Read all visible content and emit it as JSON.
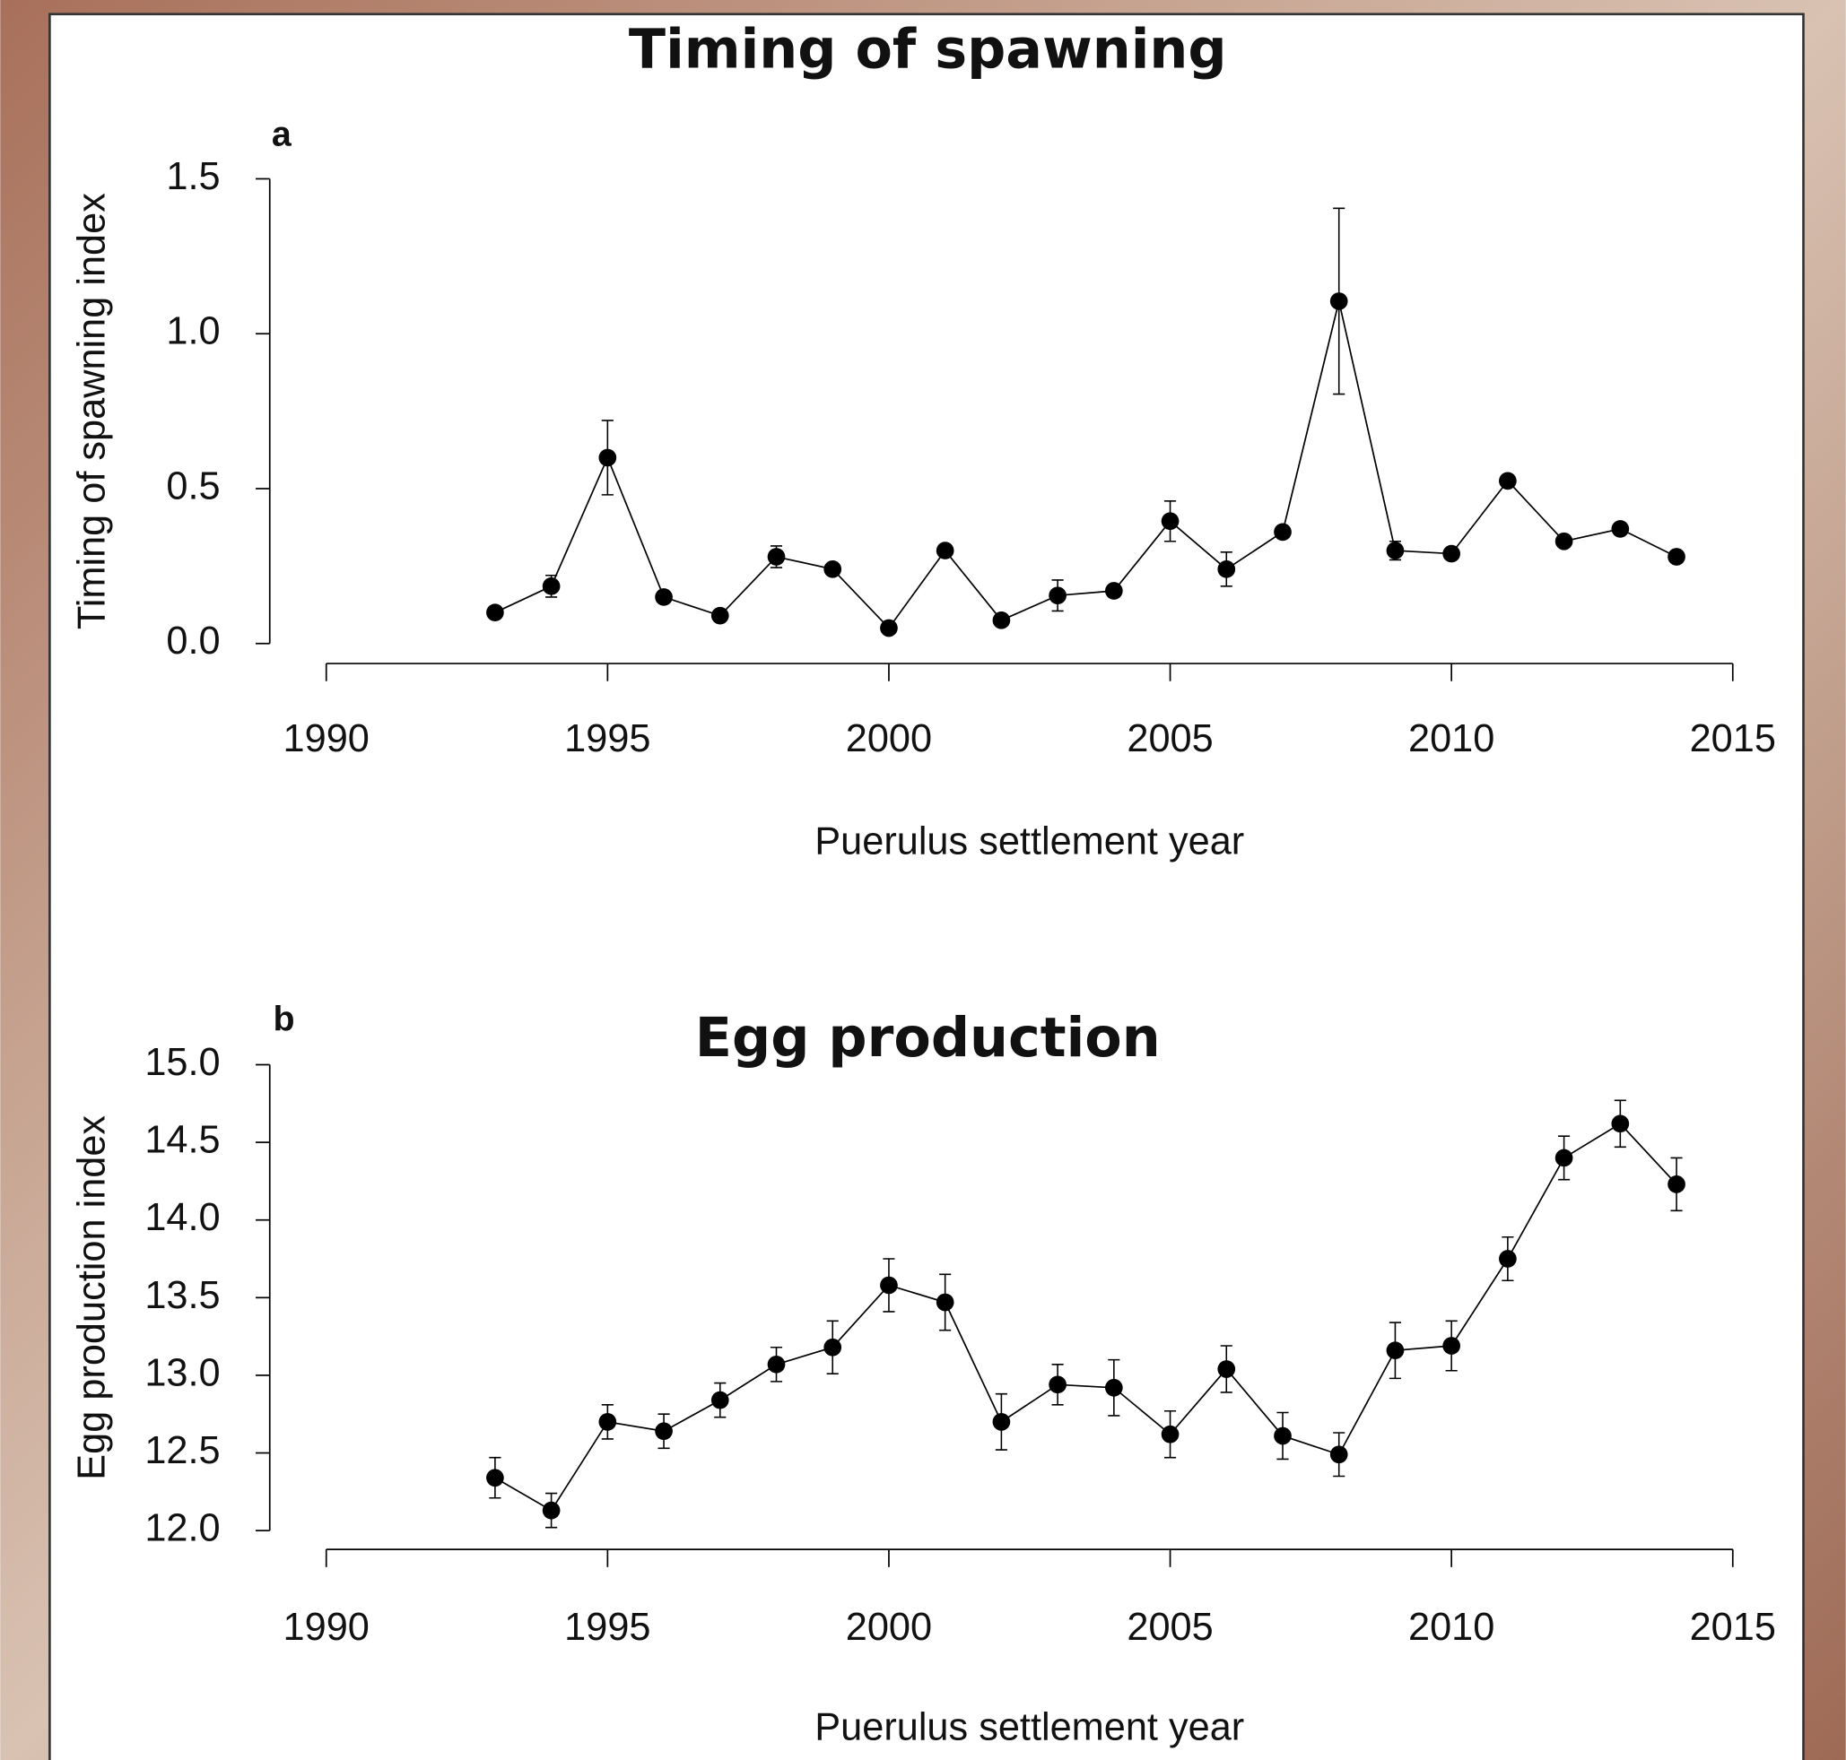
{
  "chart_data": [
    {
      "type": "line",
      "title": "Timing of spawning",
      "panel_label": "a",
      "xlabel": "Puerulus settlement year",
      "ylabel": "Timing of spawning index",
      "x": [
        1993,
        1994,
        1995,
        1996,
        1997,
        1998,
        1999,
        2000,
        2001,
        2002,
        2003,
        2004,
        2005,
        2006,
        2007,
        2008,
        2009,
        2010,
        2011,
        2012,
        2013,
        2014
      ],
      "values": [
        0.1,
        0.185,
        0.6,
        0.15,
        0.09,
        0.28,
        0.24,
        0.05,
        0.3,
        0.075,
        0.155,
        0.17,
        0.395,
        0.24,
        0.36,
        1.105,
        0.3,
        0.29,
        0.525,
        0.33,
        0.37,
        0.28
      ],
      "errors": [
        0.01,
        0.035,
        0.12,
        0.01,
        0.01,
        0.035,
        0.01,
        0.01,
        0.015,
        0.01,
        0.05,
        0.01,
        0.065,
        0.055,
        0.01,
        0.3,
        0.03,
        0.01,
        0.01,
        0.01,
        0.01,
        0.01
      ],
      "color": "#000000",
      "xlim": [
        1990,
        2015
      ],
      "xticks": [
        1990,
        1995,
        2000,
        2005,
        2010,
        2015
      ],
      "ylim": [
        0,
        1.5
      ],
      "yticks": [
        {
          "value": 0,
          "label": "0.0"
        },
        0.5,
        {
          "value": 1,
          "label": "1.0"
        },
        1.5
      ]
    },
    {
      "type": "line",
      "title": "Egg production",
      "panel_label": "b",
      "xlabel": "Puerulus settlement year",
      "ylabel": "Egg production index",
      "x": [
        1993,
        1994,
        1995,
        1996,
        1997,
        1998,
        1999,
        2000,
        2001,
        2002,
        2003,
        2004,
        2005,
        2006,
        2007,
        2008,
        2009,
        2010,
        2011,
        2012,
        2013,
        2014
      ],
      "values": [
        12.34,
        12.13,
        12.7,
        12.64,
        12.84,
        13.07,
        13.18,
        13.58,
        13.47,
        12.7,
        12.94,
        12.92,
        12.62,
        13.04,
        12.61,
        12.49,
        13.16,
        13.19,
        13.75,
        14.4,
        14.62,
        14.23
      ],
      "errors": [
        0.13,
        0.11,
        0.11,
        0.11,
        0.11,
        0.11,
        0.17,
        0.17,
        0.18,
        0.18,
        0.13,
        0.18,
        0.15,
        0.15,
        0.15,
        0.14,
        0.18,
        0.16,
        0.14,
        0.14,
        0.15,
        0.17
      ],
      "color": "#000000",
      "xlim": [
        1990,
        2015
      ],
      "xticks": [
        1990,
        1995,
        2000,
        2005,
        2010,
        2015
      ],
      "ylim": [
        12,
        15
      ],
      "yticks": [
        {
          "value": 12,
          "label": "12.0"
        },
        12.5,
        {
          "value": 13,
          "label": "13.0"
        },
        13.5,
        {
          "value": 14,
          "label": "14.0"
        },
        14.5,
        {
          "value": 15,
          "label": "15.0"
        }
      ]
    }
  ]
}
